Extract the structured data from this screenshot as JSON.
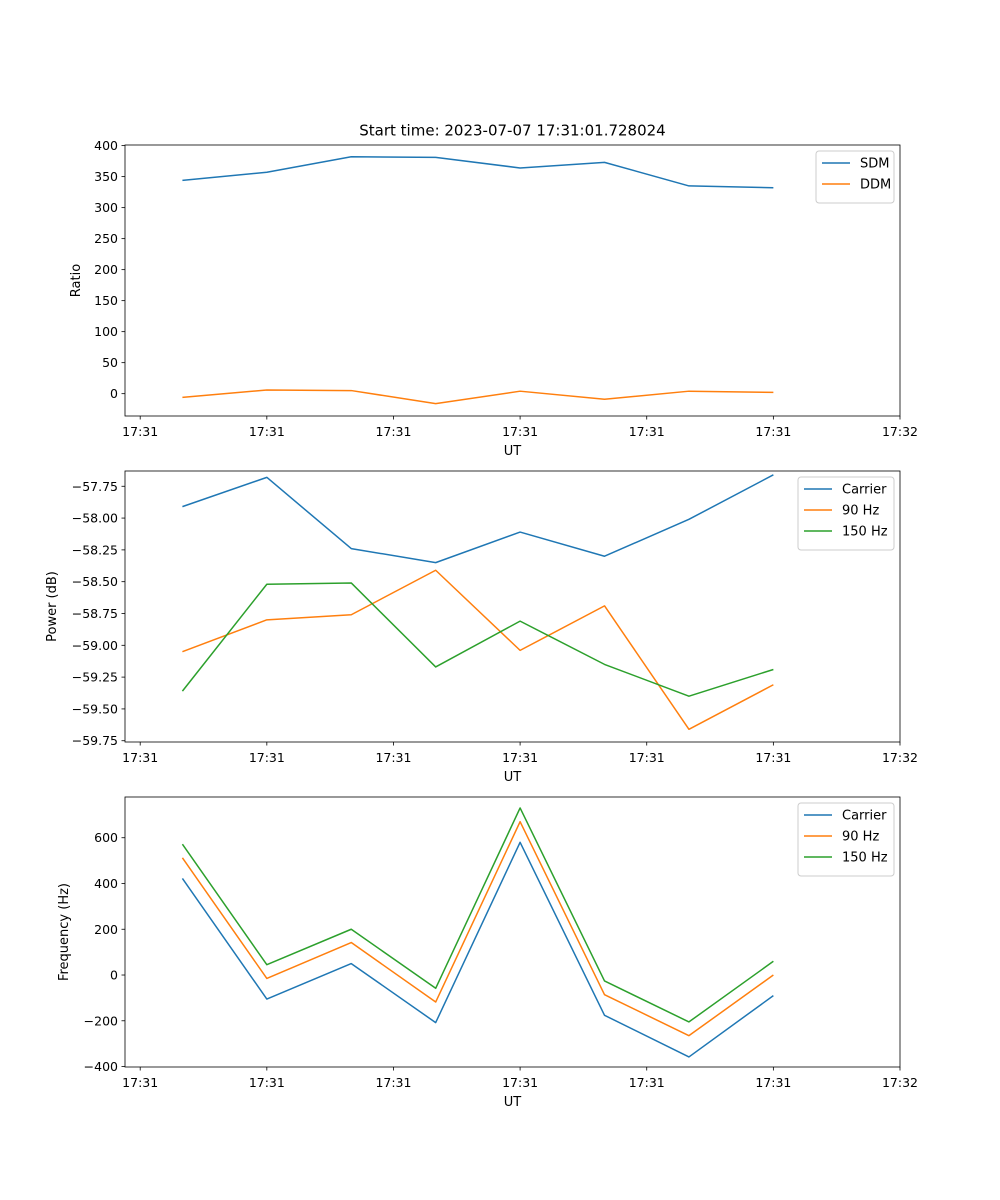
{
  "figure_title": "Start time: 2023-07-07 17:31:01.728024",
  "colors": {
    "c0": "#1f77b4",
    "c1": "#ff7f0e",
    "c2": "#2ca02c"
  },
  "chart_data": [
    {
      "type": "line",
      "title": "Start time: 2023-07-07 17:31:01.728024",
      "xlabel": "UT",
      "ylabel": "Ratio",
      "x": [
        1,
        2,
        3,
        4,
        5,
        6,
        7,
        8
      ],
      "xlim": [
        0.32,
        9.5
      ],
      "xticks": [
        0.5,
        2.0,
        3.5,
        5.0,
        6.5,
        8.0,
        9.5
      ],
      "xtick_labels": [
        "17:31",
        "17:31",
        "17:31",
        "17:31",
        "17:31",
        "17:31",
        "17:32"
      ],
      "ylim": [
        -36,
        401
      ],
      "yticks": [
        0,
        50,
        100,
        150,
        200,
        250,
        300,
        350,
        400
      ],
      "ytick_labels": [
        "0",
        "50",
        "100",
        "150",
        "200",
        "250",
        "300",
        "350",
        "400"
      ],
      "legend": "top-right",
      "series": [
        {
          "name": "SDM",
          "color": "#1f77b4",
          "values": [
            344,
            357,
            382,
            381,
            364,
            373,
            335,
            332
          ]
        },
        {
          "name": "DDM",
          "color": "#ff7f0e",
          "values": [
            -6,
            6,
            5,
            -16,
            4,
            -9,
            4,
            2
          ]
        }
      ]
    },
    {
      "type": "line",
      "title": "",
      "xlabel": "UT",
      "ylabel": "Power (dB)",
      "x": [
        1,
        2,
        3,
        4,
        5,
        6,
        7,
        8
      ],
      "xlim": [
        0.32,
        9.5
      ],
      "xticks": [
        0.5,
        2.0,
        3.5,
        5.0,
        6.5,
        8.0,
        9.5
      ],
      "xtick_labels": [
        "17:31",
        "17:31",
        "17:31",
        "17:31",
        "17:31",
        "17:31",
        "17:32"
      ],
      "ylim": [
        -59.76,
        -57.63
      ],
      "yticks": [
        -57.75,
        -58.0,
        -58.25,
        -58.5,
        -58.75,
        -59.0,
        -59.25,
        -59.5,
        -59.75
      ],
      "ytick_labels": [
        "−57.75",
        "−58.00",
        "−58.25",
        "−58.50",
        "−58.75",
        "−59.00",
        "−59.25",
        "−59.50",
        "−59.75"
      ],
      "legend": "top-right",
      "series": [
        {
          "name": "Carrier",
          "color": "#1f77b4",
          "values": [
            -57.91,
            -57.68,
            -58.24,
            -58.35,
            -58.11,
            -58.3,
            -58.01,
            -57.66
          ]
        },
        {
          "name": "90 Hz",
          "color": "#ff7f0e",
          "values": [
            -59.05,
            -58.8,
            -58.76,
            -58.41,
            -59.04,
            -58.69,
            -59.66,
            -59.31
          ]
        },
        {
          "name": "150 Hz",
          "color": "#2ca02c",
          "values": [
            -59.36,
            -58.52,
            -58.51,
            -59.17,
            -58.81,
            -59.15,
            -59.4,
            -59.19
          ]
        }
      ]
    },
    {
      "type": "line",
      "title": "",
      "xlabel": "UT",
      "ylabel": "Frequency (Hz)",
      "x": [
        1,
        2,
        3,
        4,
        5,
        6,
        7,
        8
      ],
      "xlim": [
        0.32,
        9.5
      ],
      "xticks": [
        0.5,
        2.0,
        3.5,
        5.0,
        6.5,
        8.0,
        9.5
      ],
      "xtick_labels": [
        "17:31",
        "17:31",
        "17:31",
        "17:31",
        "17:31",
        "17:31",
        "17:32"
      ],
      "ylim": [
        -402,
        778
      ],
      "yticks": [
        -400,
        -200,
        0,
        200,
        400,
        600
      ],
      "ytick_labels": [
        "−400",
        "−200",
        "0",
        "200",
        "400",
        "600"
      ],
      "legend": "top-right",
      "series": [
        {
          "name": "Carrier",
          "color": "#1f77b4",
          "values": [
            422,
            -105,
            50,
            -208,
            580,
            -176,
            -358,
            -90
          ]
        },
        {
          "name": "90 Hz",
          "color": "#ff7f0e",
          "values": [
            512,
            -15,
            142,
            -118,
            670,
            -86,
            -265,
            0
          ]
        },
        {
          "name": "150 Hz",
          "color": "#2ca02c",
          "values": [
            572,
            45,
            200,
            -58,
            730,
            -26,
            -205,
            60
          ]
        }
      ]
    }
  ]
}
